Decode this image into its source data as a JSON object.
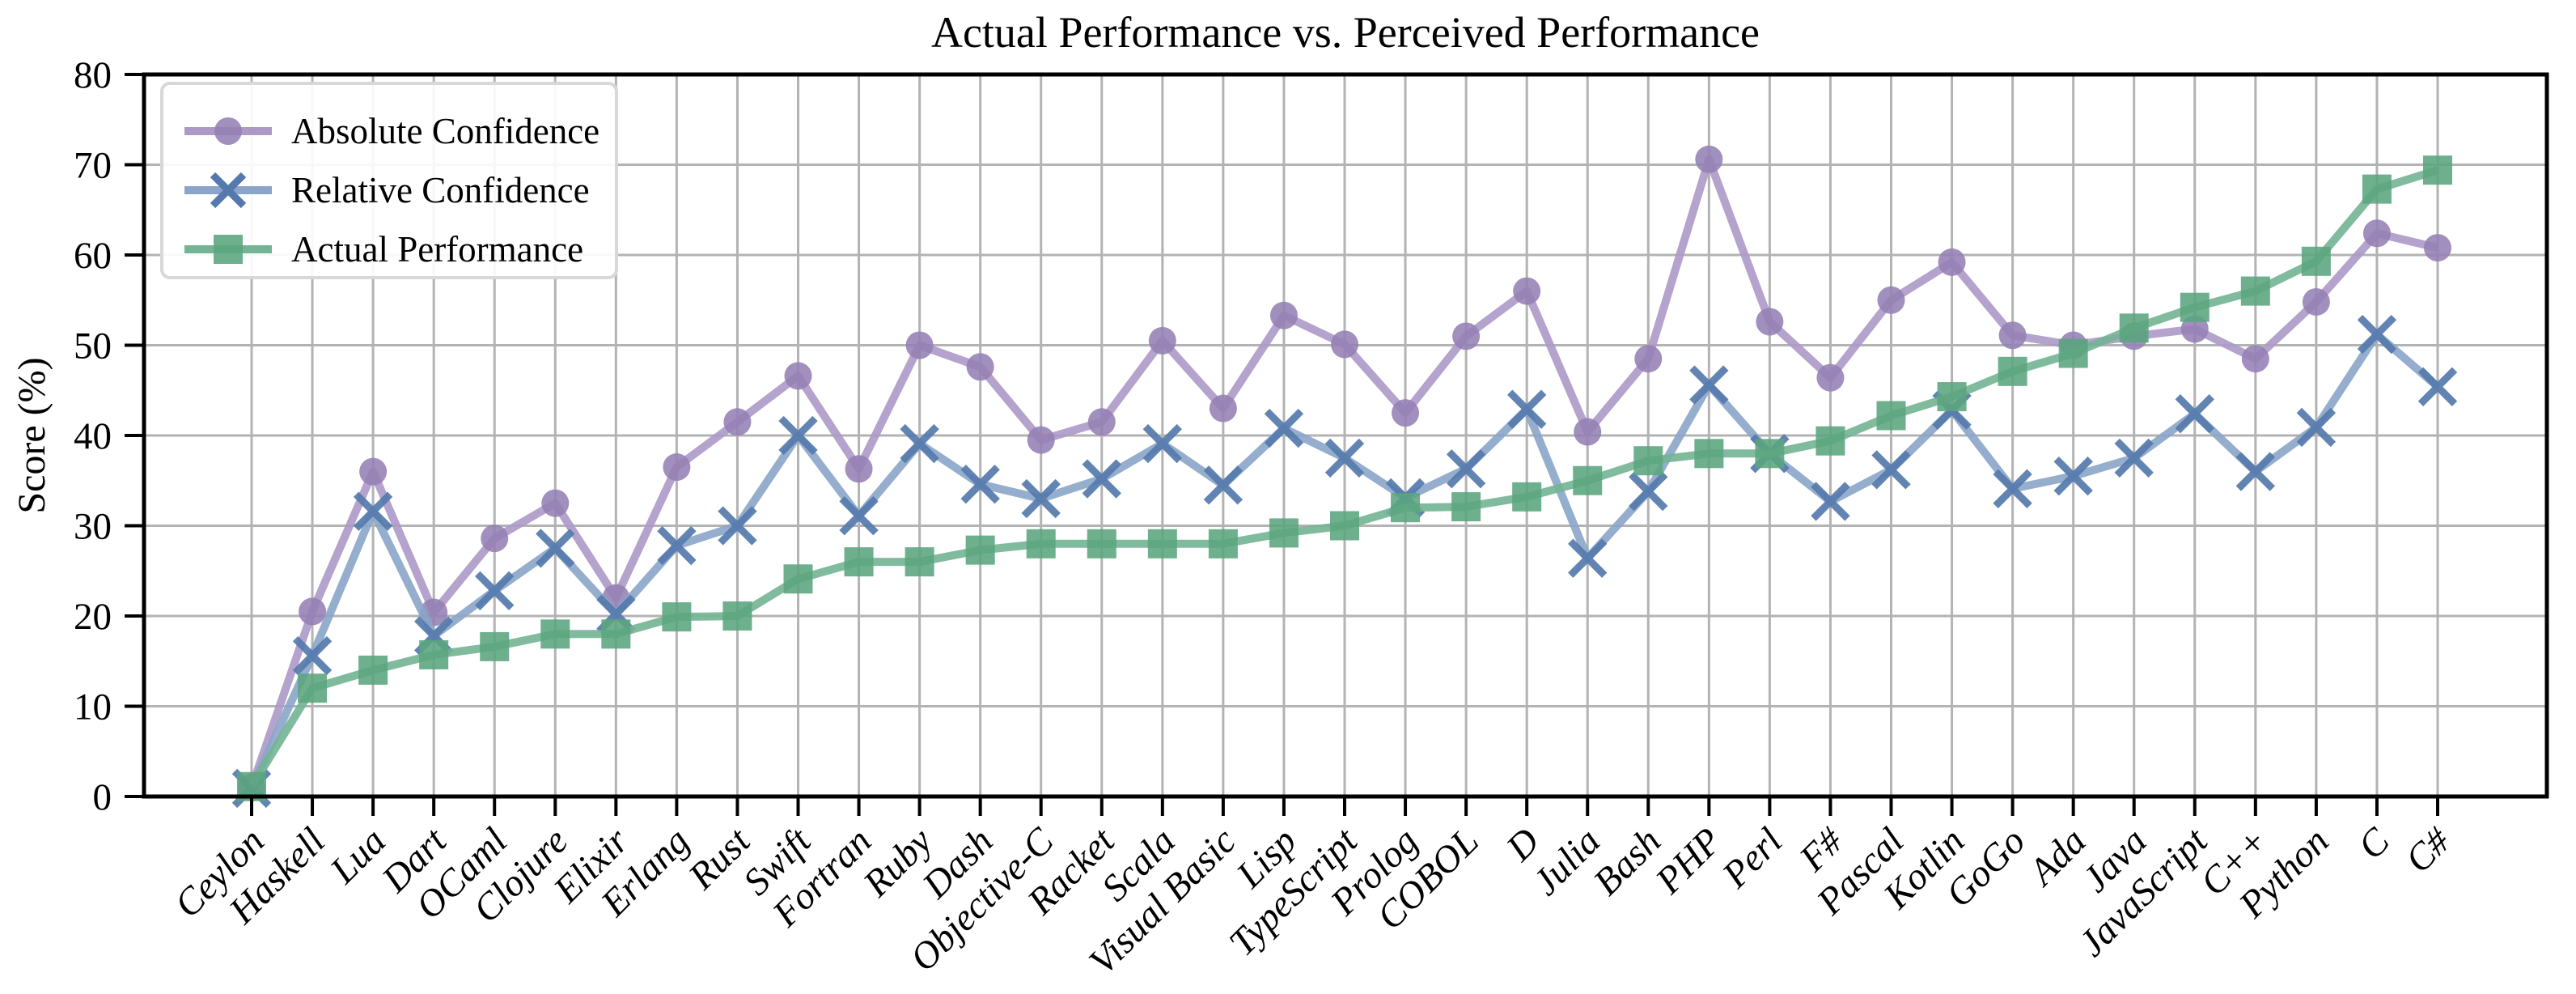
{
  "title": "Actual Performance vs. Perceived Performance",
  "axes": {
    "ylabel": "Score (%)",
    "yticks": [
      0,
      10,
      20,
      30,
      40,
      50,
      60,
      70,
      80
    ]
  },
  "legend": {
    "items": [
      {
        "label": "Absolute Confidence",
        "marker": "circle-icon"
      },
      {
        "label": "Relative Confidence",
        "marker": "x-icon"
      },
      {
        "label": "Actual Performance",
        "marker": "square-icon"
      }
    ]
  },
  "colors": {
    "absolute_line": "#AC99C6",
    "absolute_marker": "#9480B4",
    "relative_line": "#8AA5C9",
    "relative_marker": "#5579AD",
    "actual_line": "#72B494",
    "actual_marker": "#5AA57E",
    "grid": "#b3b3b3",
    "spine": "#000000",
    "legend_border": "#d8d8d8"
  },
  "chart_data": {
    "type": "line",
    "title": "Actual Performance vs. Perceived Performance",
    "xlabel": "",
    "ylabel": "Score (%)",
    "ylim": [
      0,
      80
    ],
    "ytick_step": 10,
    "grid": true,
    "legend_position": "upper left",
    "categories": [
      "Ceylon",
      "Haskell",
      "Lua",
      "Dart",
      "OCaml",
      "Clojure",
      "Elixir",
      "Erlang",
      "Rust",
      "Swift",
      "Fortran",
      "Ruby",
      "Dash",
      "Objective-C",
      "Racket",
      "Scala",
      "Visual Basic",
      "Lisp",
      "TypeScript",
      "Prolog",
      "COBOL",
      "D",
      "Julia",
      "Bash",
      "PHP",
      "Perl",
      "F#",
      "Pascal",
      "Kotlin",
      "GoGo",
      "Ada",
      "Java",
      "JavaScript",
      "C++",
      "Python",
      "C",
      "C#"
    ],
    "series": [
      {
        "name": "Absolute Confidence",
        "marker": "circle",
        "line_color": "#AC99C6",
        "marker_color": "#9480B4",
        "values": [
          1,
          20.5,
          36,
          20.4,
          28.6,
          32.5,
          22,
          36.5,
          41.5,
          46.6,
          36.3,
          50,
          47.6,
          39.5,
          41.5,
          50.5,
          43,
          53.3,
          50.1,
          42.5,
          51,
          56,
          40.4,
          48.5,
          70.6,
          52.6,
          46.4,
          55,
          59.2,
          51.1,
          50,
          51,
          51.8,
          48.5,
          54.8,
          62.4,
          60.8
        ]
      },
      {
        "name": "Relative Confidence",
        "marker": "x",
        "line_color": "#8AA5C9",
        "marker_color": "#5579AD",
        "values": [
          0.9,
          15.6,
          31.6,
          17.8,
          22.8,
          27.5,
          20.2,
          27.8,
          30,
          40,
          31.1,
          39.1,
          34.6,
          33,
          35.2,
          39.1,
          34.5,
          40.8,
          37.5,
          33.1,
          36.3,
          42.9,
          26.4,
          33.8,
          45.6,
          38,
          32.7,
          36.2,
          42.8,
          34.1,
          35.5,
          37.5,
          42.4,
          36,
          40.9,
          51.2,
          45.4
        ]
      },
      {
        "name": "Actual Performance",
        "marker": "square",
        "line_color": "#72B494",
        "marker_color": "#5AA57E",
        "values": [
          1.1,
          12,
          14,
          15.7,
          16.6,
          18,
          18,
          19.9,
          20,
          24.1,
          26,
          26,
          27.3,
          28,
          28,
          28,
          28,
          29.2,
          30,
          32,
          32.1,
          33.2,
          35,
          37.2,
          38,
          38,
          39.4,
          42.2,
          44.3,
          47.1,
          49.1,
          51.9,
          54.2,
          56,
          59.3,
          67.3,
          69.4
        ]
      }
    ]
  }
}
